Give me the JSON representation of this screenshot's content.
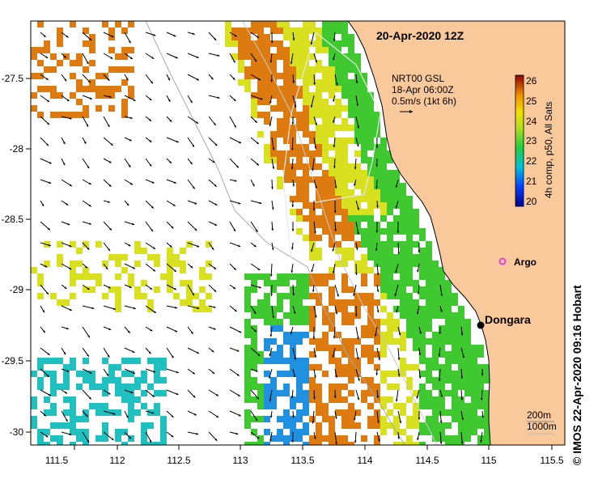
{
  "map": {
    "title": "20-Apr-2020 12Z",
    "x_ticks": [
      "111.5",
      "112",
      "112.5",
      "113",
      "113.5",
      "114",
      "114.5",
      "115",
      "115.5"
    ],
    "y_ticks": [
      "-27.5",
      "-28",
      "-28.5",
      "-29",
      "-29.5",
      "-30"
    ],
    "current_legend": {
      "line1": "NRT00 GSL",
      "line2": "18-Apr 06:00Z",
      "line3": "0.5m/s (1kt 6h)"
    },
    "colorbar": {
      "labels": [
        "26",
        "25",
        "24",
        "23",
        "22",
        "21",
        "20"
      ],
      "title": "4h comp, p50, All Sats"
    },
    "places": {
      "argo": "Argo",
      "dongara": "Dongara"
    },
    "contours": {
      "c200": "200m",
      "c1000": "1000m"
    },
    "credit": "© IMOS 22-Apr-2020 09:16 Hobart",
    "colors": {
      "land": "#fac99b",
      "coast": "#000000",
      "argo": "#e040e0",
      "sst_orange": "#dd7a10",
      "sst_yellow": "#d8e020",
      "sst_green": "#40c830",
      "sst_cyan": "#20c0c0",
      "sst_blue": "#2090e0"
    }
  }
}
